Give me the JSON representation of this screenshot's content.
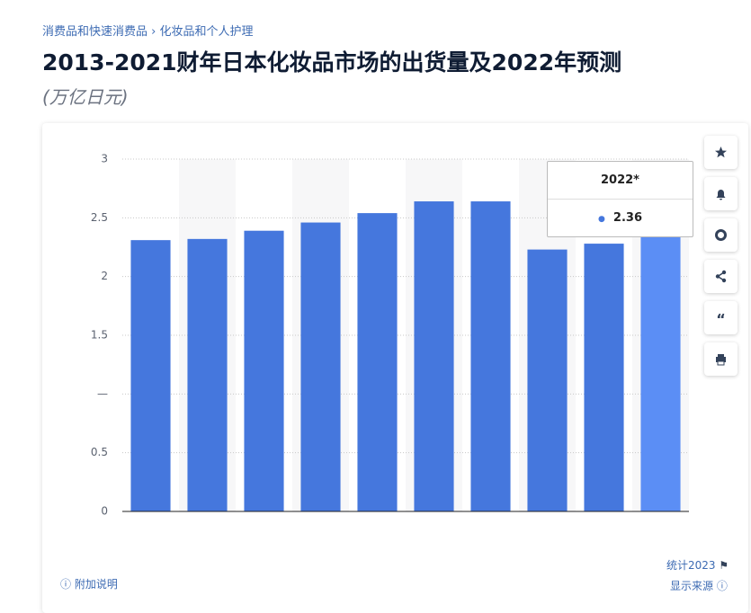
{
  "breadcrumb": {
    "items": [
      "消费品和快速消费品",
      "化妆品和个人护理"
    ]
  },
  "chart_data": {
    "type": "bar",
    "title": "2013-2021财年日本化妆品市场的出货量及2022年预测",
    "subtitle": "(万亿日元)",
    "categories": [
      null,
      null,
      null,
      null,
      null,
      null,
      null,
      null,
      null,
      "2022*"
    ],
    "values": [
      2.31,
      2.32,
      2.39,
      2.46,
      2.54,
      2.64,
      2.64,
      2.23,
      2.28,
      2.36
    ],
    "colors": [
      "#4577dd",
      "#4577dd",
      "#4577dd",
      "#4577dd",
      "#4577dd",
      "#4577dd",
      "#4577dd",
      "#4577dd",
      "#4577dd",
      "#5b8ef5"
    ],
    "ylim": [
      0,
      3
    ],
    "yticks": [
      0,
      0.5,
      {
        "value": 1,
        "label": "—"
      },
      1.5,
      2,
      2.5,
      3
    ],
    "grid": true
  },
  "footer": {
    "source_year": "统计2023",
    "show_source": "显示来源",
    "additional_info": "附加说明"
  }
}
